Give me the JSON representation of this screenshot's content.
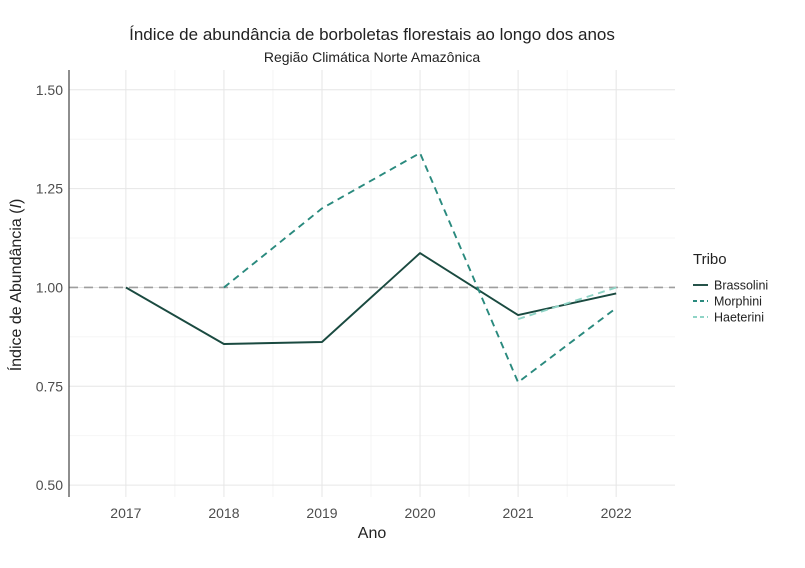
{
  "chart_data": {
    "type": "line",
    "title": "Índice de abundância de borboletas florestais ao longo dos anos",
    "subtitle": "Região Climática Norte Amazônica",
    "xlabel": "Ano",
    "ylabel_main": "Índice de Abundância (",
    "ylabel_italic": "I",
    "ylabel_end": ")",
    "x": [
      2017,
      2018,
      2019,
      2020,
      2021,
      2022
    ],
    "x_tick_labels": [
      "2017",
      "2018",
      "2019",
      "2020",
      "2021",
      "2022"
    ],
    "ylim": [
      0.47,
      1.55
    ],
    "y_ticks": [
      0.5,
      0.75,
      1.0,
      1.25,
      1.5
    ],
    "y_tick_labels": [
      "0.50",
      "0.75",
      "1.00",
      "1.25",
      "1.50"
    ],
    "reference_line": 1.0,
    "grid": true,
    "legend_title": "Tribo",
    "legend_position": "right",
    "series": [
      {
        "name": "Brassolini",
        "color": "#1a4a40",
        "dash": "solid",
        "points": [
          [
            2017,
            1.0
          ],
          [
            2018,
            0.857
          ],
          [
            2019,
            0.862
          ],
          [
            2020,
            1.087
          ],
          [
            2021,
            0.93
          ],
          [
            2022,
            0.985
          ]
        ]
      },
      {
        "name": "Morphini",
        "color": "#2a8a7e",
        "dash": "dashed",
        "points": [
          [
            2018,
            1.0
          ],
          [
            2019,
            1.2
          ],
          [
            2020,
            1.34
          ],
          [
            2021,
            0.76
          ],
          [
            2022,
            0.948
          ]
        ]
      },
      {
        "name": "Haeterini",
        "color": "#8fd4c6",
        "dash": "dashed",
        "points": [
          [
            2021,
            0.92
          ],
          [
            2022,
            1.0
          ]
        ]
      }
    ]
  }
}
